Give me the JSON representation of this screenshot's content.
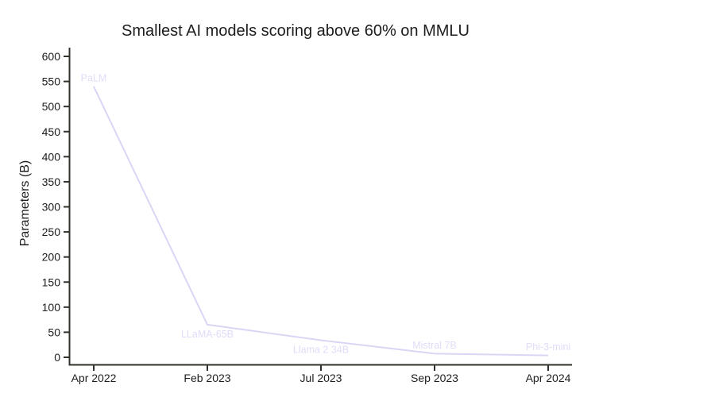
{
  "chart_data": {
    "type": "line",
    "title": "Smallest AI models scoring above 60% on MMLU",
    "xlabel": "",
    "ylabel": "Parameters (B)",
    "x_categories": [
      "Apr 2022",
      "Feb 2023",
      "Jul 2023",
      "Sep 2023",
      "Apr 2024"
    ],
    "y_ticks": [
      0,
      50,
      100,
      150,
      200,
      250,
      300,
      350,
      400,
      450,
      500,
      550,
      600
    ],
    "ylim": [
      0,
      617
    ],
    "grid": false,
    "legend": null,
    "points": [
      {
        "model": "PaLM",
        "date": "Apr 2022",
        "params_b": 540,
        "label_side": "above"
      },
      {
        "model": "LLaMA-65B",
        "date": "Feb 2023",
        "params_b": 65,
        "label_side": "below"
      },
      {
        "model": "Llama 2 34B",
        "date": "Jul 2023",
        "params_b": 34,
        "label_side": "below"
      },
      {
        "model": "Mistral 7B",
        "date": "Sep 2023",
        "params_b": 7.3,
        "label_side": "above"
      },
      {
        "model": "Phi-3-mini",
        "date": "Apr 2024",
        "params_b": 3.8,
        "label_side": "above"
      }
    ],
    "colors": {
      "line": "#d9d6f5",
      "point_label": "#dfddf8",
      "axis": "#31302a",
      "text": "#1d1d1b",
      "background": "#ffffff"
    }
  }
}
